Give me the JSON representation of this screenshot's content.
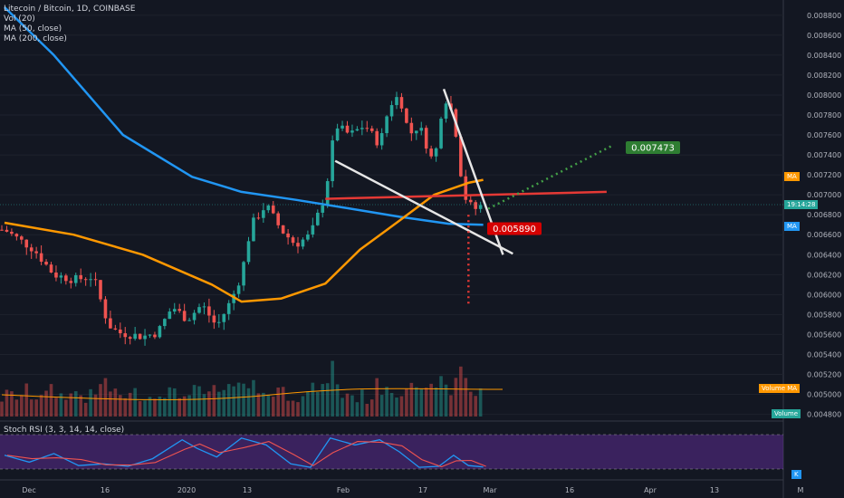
{
  "legend": {
    "title": "Litecoin / Bitcoin, 1D, COINBASE",
    "vol": "Vol (20)",
    "ma50": "MA (50, close)",
    "ma200": "MA (200, close)",
    "rsi": "Stoch RSI (3, 3, 14, 14, close)"
  },
  "price_tags": {
    "ma_orange": "MA",
    "current_time": "19:14:28",
    "ma_blue": "MA",
    "volume_ma": "Volume MA",
    "volume": "Volume",
    "rsi_k": "K"
  },
  "annotations": {
    "target_up": "0.007473",
    "target_down": "0.005890"
  },
  "colors": {
    "background": "#131722",
    "up": "#26a69a",
    "down": "#ef5350",
    "ma50": "#ff9800",
    "ma200": "#2196f3",
    "target_up": "#2e7d32",
    "target_down": "#d50000",
    "rsi_band": "#5b2c8f"
  },
  "chart_data": {
    "type": "candlestick",
    "symbol": "Litecoin / Bitcoin",
    "interval": "1D",
    "exchange": "COINBASE",
    "y_ticks": [
      "0.008800",
      "0.008600",
      "0.008400",
      "0.008200",
      "0.008000",
      "0.007800",
      "0.007600",
      "0.007400",
      "0.007200",
      "0.007000",
      "0.006800",
      "0.006600",
      "0.006400",
      "0.006200",
      "0.006000",
      "0.005800",
      "0.005600",
      "0.005400",
      "0.005200",
      "0.005000",
      "0.004800"
    ],
    "ylim": [
      0.00476,
      0.00888
    ],
    "x_ticks": [
      "Dec",
      "16",
      "2020",
      "13",
      "Feb",
      "17",
      "Mar",
      "16",
      "Apr",
      "13",
      "M"
    ],
    "price_path": [
      [
        "2019-11-26",
        0.00665
      ],
      [
        "2019-12-02",
        0.00645
      ],
      [
        "2019-12-06",
        0.0062
      ],
      [
        "2019-12-10",
        0.00615
      ],
      [
        "2019-12-14",
        0.00618
      ],
      [
        "2019-12-17",
        0.0057
      ],
      [
        "2019-12-19",
        0.00562
      ],
      [
        "2019-12-24",
        0.00558
      ],
      [
        "2019-12-27",
        0.00562
      ],
      [
        "2019-12-30",
        0.00588
      ],
      [
        "2020-01-02",
        0.00575
      ],
      [
        "2020-01-05",
        0.0059
      ],
      [
        "2020-01-08",
        0.00568
      ],
      [
        "2020-01-11",
        0.00595
      ],
      [
        "2020-01-13",
        0.0062
      ],
      [
        "2020-01-15",
        0.0067
      ],
      [
        "2020-01-18",
        0.0069
      ],
      [
        "2020-01-21",
        0.00665
      ],
      [
        "2020-01-24",
        0.0065
      ],
      [
        "2020-01-27",
        0.0066
      ],
      [
        "2020-01-30",
        0.007
      ],
      [
        "2020-02-01",
        0.0077
      ],
      [
        "2020-02-04",
        0.0076
      ],
      [
        "2020-02-07",
        0.0077
      ],
      [
        "2020-02-10",
        0.0075
      ],
      [
        "2020-02-12",
        0.0079
      ],
      [
        "2020-02-14",
        0.008
      ],
      [
        "2020-02-16",
        0.0076
      ],
      [
        "2020-02-18",
        0.0077
      ],
      [
        "2020-02-21",
        0.0073
      ],
      [
        "2020-02-23",
        0.008
      ],
      [
        "2020-02-25",
        0.0078
      ],
      [
        "2020-02-27",
        0.007
      ],
      [
        "2020-02-29",
        0.00685
      ],
      [
        "2020-03-02",
        0.0069
      ]
    ],
    "ma50": [
      [
        "2019-11-26",
        0.00672
      ],
      [
        "2019-12-10",
        0.0066
      ],
      [
        "2019-12-24",
        0.0064
      ],
      [
        "2020-01-07",
        0.0061
      ],
      [
        "2020-01-13",
        0.00593
      ],
      [
        "2020-01-21",
        0.00596
      ],
      [
        "2020-01-30",
        0.00611
      ],
      [
        "2020-02-06",
        0.00645
      ],
      [
        "2020-02-14",
        0.00674
      ],
      [
        "2020-02-21",
        0.007
      ],
      [
        "2020-02-28",
        0.00712
      ],
      [
        "2020-03-02",
        0.00715
      ]
    ],
    "ma200": [
      [
        "2019-11-26",
        0.00888
      ],
      [
        "2019-12-06",
        0.0084
      ],
      [
        "2019-12-20",
        0.0076
      ],
      [
        "2020-01-03",
        0.00718
      ],
      [
        "2020-01-13",
        0.00703
      ],
      [
        "2020-01-24",
        0.00695
      ],
      [
        "2020-02-03",
        0.00687
      ],
      [
        "2020-02-14",
        0.00678
      ],
      [
        "2020-02-24",
        0.00671
      ],
      [
        "2020-03-02",
        0.0067
      ]
    ],
    "drawings": {
      "upper_trendline": [
        [
          "2020-02-23",
          0.00806
        ],
        [
          "2020-03-06",
          0.0064
        ]
      ],
      "lower_trendline": [
        [
          "2020-02-01",
          0.00734
        ],
        [
          "2020-03-08",
          0.00641
        ]
      ],
      "horizontal_line": [
        [
          "2020-01-30",
          0.00696
        ],
        [
          "2020-03-27",
          0.00703
        ]
      ],
      "up_projection": [
        [
          "2020-03-03",
          0.00686
        ],
        [
          "2020-03-28",
          0.00749
        ]
      ],
      "down_projection": [
        [
          "2020-02-28",
          0.0068
        ],
        [
          "2020-02-28",
          0.0059
        ]
      ]
    },
    "targets": {
      "up": 0.007473,
      "down": 0.00589
    },
    "rsi_k": [
      [
        "2019-11-26",
        40
      ],
      [
        "2019-12-01",
        20
      ],
      [
        "2019-12-06",
        45
      ],
      [
        "2019-12-11",
        10
      ],
      [
        "2019-12-16",
        15
      ],
      [
        "2019-12-21",
        8
      ],
      [
        "2019-12-26",
        30
      ],
      [
        "2020-01-01",
        85
      ],
      [
        "2020-01-04",
        60
      ],
      [
        "2020-01-08",
        35
      ],
      [
        "2020-01-13",
        90
      ],
      [
        "2020-01-18",
        70
      ],
      [
        "2020-01-23",
        15
      ],
      [
        "2020-01-27",
        5
      ],
      [
        "2020-01-31",
        90
      ],
      [
        "2020-02-05",
        70
      ],
      [
        "2020-02-10",
        85
      ],
      [
        "2020-02-14",
        50
      ],
      [
        "2020-02-18",
        5
      ],
      [
        "2020-02-22",
        8
      ],
      [
        "2020-02-25",
        40
      ],
      [
        "2020-02-28",
        10
      ],
      [
        "2020-03-02",
        6
      ]
    ]
  }
}
